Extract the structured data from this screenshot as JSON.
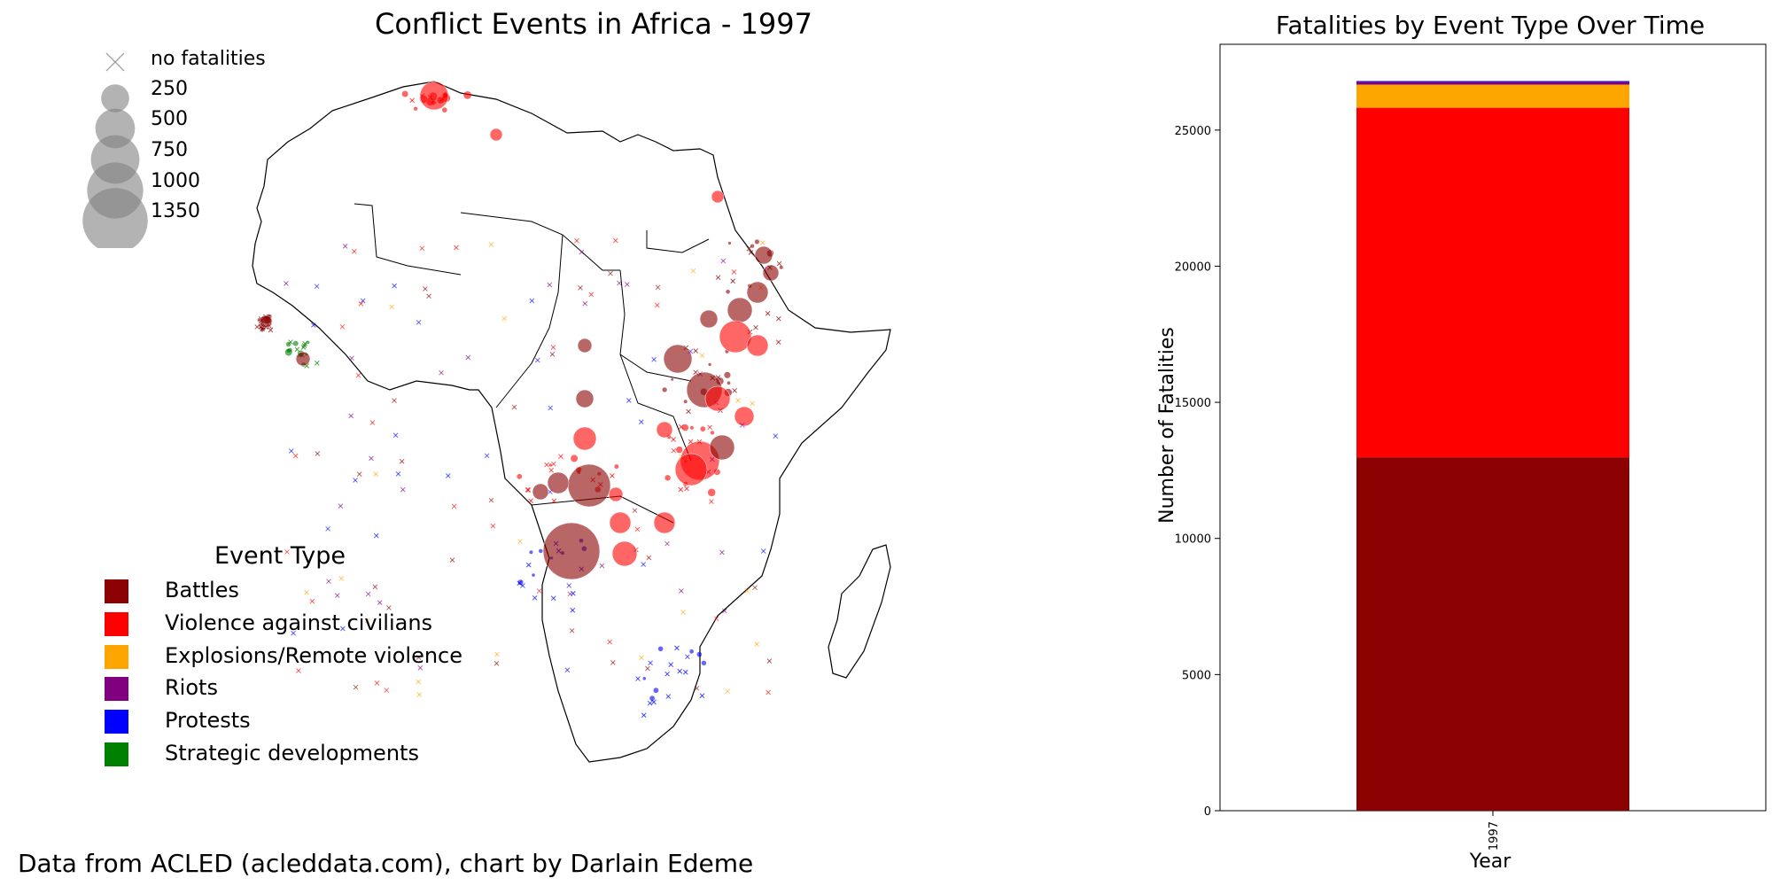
{
  "map": {
    "title": "Conflict Events in Africa - 1997",
    "size_legend": [
      {
        "label": "no fatalities",
        "marker": "cross"
      },
      {
        "label": "250",
        "value": 250
      },
      {
        "label": "500",
        "value": 500
      },
      {
        "label": "750",
        "value": 750
      },
      {
        "label": "1000",
        "value": 1000
      },
      {
        "label": "1350",
        "value": 1350
      }
    ],
    "type_legend_title": "Event Type",
    "event_types": [
      {
        "label": "Battles",
        "color": "#8b0000"
      },
      {
        "label": "Violence against civilians",
        "color": "#ff0000"
      },
      {
        "label": "Explosions/Remote violence",
        "color": "#ffa500"
      },
      {
        "label": "Riots",
        "color": "#800080"
      },
      {
        "label": "Protests",
        "color": "#0000ff"
      },
      {
        "label": "Strategic developments",
        "color": "#008000"
      }
    ]
  },
  "footer": "Data from ACLED (acleddata.com), chart by Darlain Edeme",
  "chart_data": {
    "type": "bar",
    "stacked": true,
    "title": "Fatalities by Event Type Over Time",
    "xlabel": "Year",
    "ylabel": "Number of Fatalities",
    "categories": [
      "1997"
    ],
    "ylim": [
      0,
      28150
    ],
    "yticks": [
      0,
      5000,
      10000,
      15000,
      20000,
      25000
    ],
    "series": [
      {
        "name": "Battles",
        "color": "#8b0000",
        "values": [
          12980
        ]
      },
      {
        "name": "Violence against civilians",
        "color": "#ff0000",
        "values": [
          12840
        ]
      },
      {
        "name": "Explosions/Remote violence",
        "color": "#ffa500",
        "values": [
          850
        ]
      },
      {
        "name": "Riots",
        "color": "#800080",
        "values": [
          100
        ]
      },
      {
        "name": "Protests",
        "color": "#0000ff",
        "values": [
          30
        ]
      }
    ]
  }
}
